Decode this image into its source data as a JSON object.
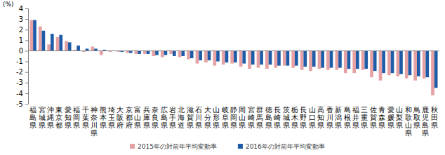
{
  "chart_data": {
    "type": "bar",
    "ylabel": "(%)",
    "categories": [
      "福島県",
      "宮城県",
      "沖縄県",
      "東京都",
      "愛知県",
      "福岡県",
      "千葉県",
      "神奈川県",
      "熊本県",
      "埼玉県",
      "大阪府",
      "京都府",
      "富山県",
      "兵庫県",
      "奈良県",
      "広島県",
      "岩手県",
      "北海道",
      "滋賀県",
      "石川県",
      "大分県",
      "山形県",
      "岐阜県",
      "静岡県",
      "岡山県",
      "宮崎県",
      "群馬県",
      "徳島県",
      "長崎県",
      "茨城県",
      "栃木県",
      "長野県",
      "山口県",
      "高知県",
      "香川県",
      "新潟県",
      "島根県",
      "福井県",
      "三重県",
      "佐賀県",
      "青森県",
      "愛媛県",
      "山梨県",
      "和歌山県",
      "鳥取県",
      "鹿児島県",
      "秋田県"
    ],
    "series": [
      {
        "name": "2015年の対前年平均変動率",
        "color": "#e6a1a4",
        "values": [
          2.9,
          2.3,
          0.6,
          1.3,
          0.9,
          0.1,
          -0.1,
          0.4,
          -0.4,
          -0.1,
          -0.1,
          -0.2,
          -0.3,
          -0.3,
          -0.5,
          -0.6,
          -0.3,
          -0.6,
          -0.8,
          -1.2,
          -1.1,
          -1.4,
          -1.3,
          -1.2,
          -1.5,
          -1.7,
          -1.6,
          -1.7,
          -1.6,
          -1.4,
          -1.6,
          -1.8,
          -1.9,
          -1.7,
          -1.8,
          -1.8,
          -2.1,
          -2.1,
          -1.8,
          -2.5,
          -2.8,
          -2.3,
          -2.4,
          -2.6,
          -2.8,
          -2.6,
          -4.2
        ]
      },
      {
        "name": "2016年の対前年平均変動率",
        "color": "#1f5ca8",
        "values": [
          2.9,
          1.9,
          1.6,
          1.5,
          0.8,
          0.5,
          0.2,
          0.2,
          0.1,
          0.0,
          -0.1,
          -0.2,
          -0.3,
          -0.3,
          -0.4,
          -0.4,
          -0.5,
          -0.5,
          -0.7,
          -0.9,
          -0.9,
          -1.0,
          -1.1,
          -1.1,
          -1.2,
          -1.3,
          -1.3,
          -1.3,
          -1.4,
          -1.4,
          -1.4,
          -1.5,
          -1.5,
          -1.6,
          -1.6,
          -1.6,
          -1.7,
          -1.7,
          -1.7,
          -1.9,
          -2.1,
          -2.1,
          -2.2,
          -2.3,
          -2.4,
          -2.5,
          -3.5
        ]
      }
    ],
    "ylim": [
      -5,
      4
    ],
    "yticks": [
      -5,
      -4,
      -3,
      -2,
      -1,
      0,
      1,
      2,
      3,
      4
    ],
    "grid": false,
    "legend": "bottom"
  }
}
